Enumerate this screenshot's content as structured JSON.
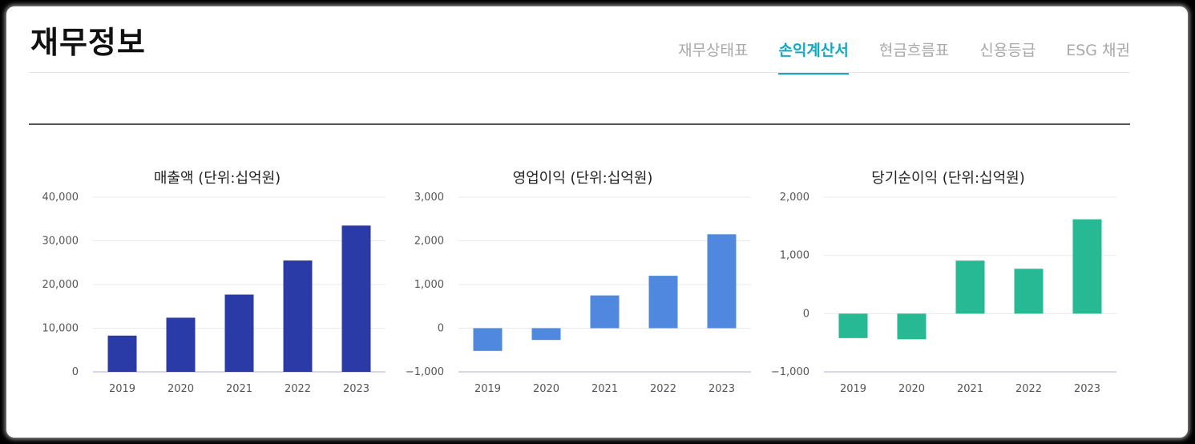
{
  "header": {
    "title": "재무정보",
    "tabs": [
      {
        "label": "재무상태표",
        "active": false
      },
      {
        "label": "손익계산서",
        "active": true
      },
      {
        "label": "현금흐름표",
        "active": false
      },
      {
        "label": "신용등급",
        "active": false
      },
      {
        "label": "ESG 채권",
        "active": false
      }
    ],
    "accent_color": "#15a8c4"
  },
  "chart_data": [
    {
      "type": "bar",
      "title": "매출액 (단위:십억원)",
      "categories": [
        "2019",
        "2020",
        "2021",
        "2022",
        "2023"
      ],
      "values": [
        8300,
        12400,
        17700,
        25500,
        33500
      ],
      "ylim": [
        0,
        40000
      ],
      "yticks": [
        0,
        10000,
        20000,
        30000,
        40000
      ],
      "ytick_labels": [
        "0",
        "10,000",
        "20,000",
        "30,000",
        "40,000"
      ],
      "color": "#2a3ba8",
      "grid": true
    },
    {
      "type": "bar",
      "title": "영업이익 (단위:십억원)",
      "categories": [
        "2019",
        "2020",
        "2021",
        "2022",
        "2023"
      ],
      "values": [
        -520,
        -270,
        750,
        1200,
        2150
      ],
      "ylim": [
        -1000,
        3000
      ],
      "yticks": [
        -1000,
        0,
        1000,
        2000,
        3000
      ],
      "ytick_labels": [
        "−1,000",
        "0",
        "1,000",
        "2,000",
        "3,000"
      ],
      "color": "#4f88de",
      "grid": true
    },
    {
      "type": "bar",
      "title": "당기순이익 (단위:십억원)",
      "categories": [
        "2019",
        "2020",
        "2021",
        "2022",
        "2023"
      ],
      "values": [
        -420,
        -440,
        910,
        770,
        1620
      ],
      "ylim": [
        -1000,
        2000
      ],
      "yticks": [
        -1000,
        0,
        1000,
        2000
      ],
      "ytick_labels": [
        "−1,000",
        "0",
        "1,000",
        "2,000"
      ],
      "color": "#27b894",
      "grid": true
    }
  ]
}
